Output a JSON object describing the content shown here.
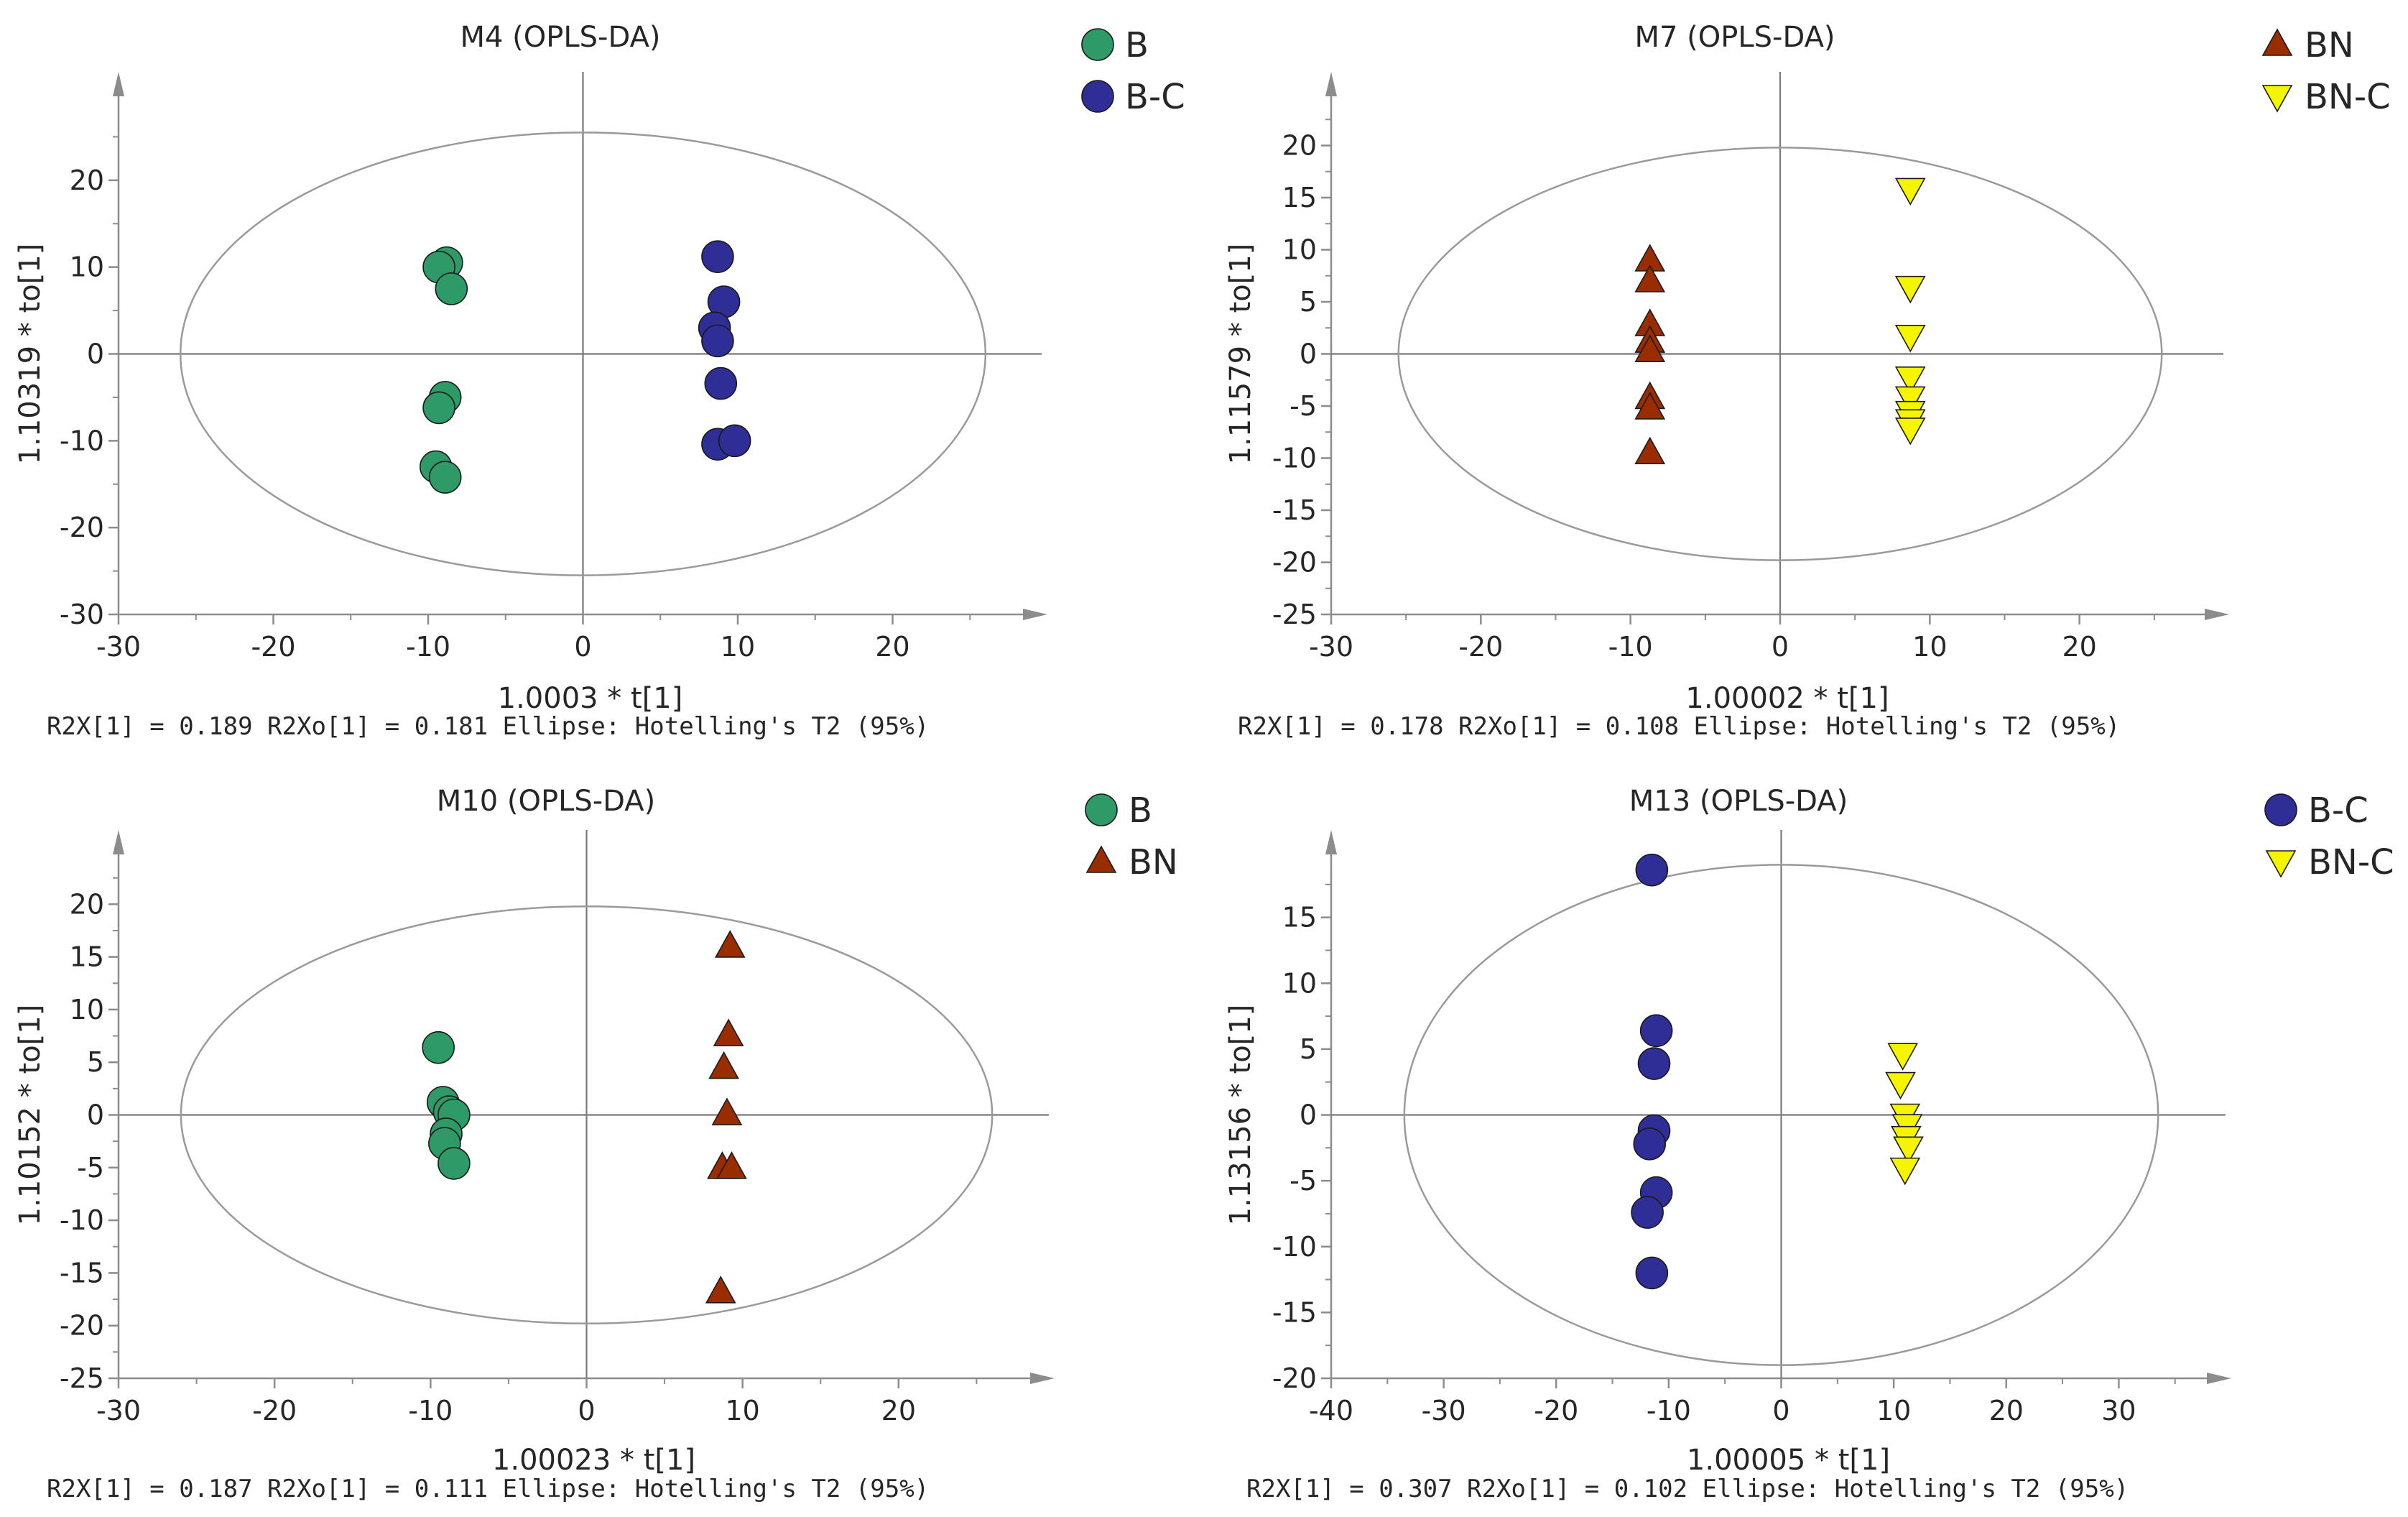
{
  "chart_data": [
    {
      "type": "scatter",
      "title": "M4 (OPLS-DA)",
      "xlabel": "1.0003 * t[1]",
      "ylabel": "1.10319 * to[1]",
      "footer": "R2X[1] = 0.189  R2Xo[1] = 0.181  Ellipse: Hotelling's T2 (95%)",
      "xlim": [
        -30,
        30
      ],
      "ylim": [
        -30,
        30
      ],
      "xticks": [
        -30,
        -20,
        -10,
        0,
        10,
        20
      ],
      "yticks": [
        -30,
        -20,
        -10,
        0,
        10,
        20
      ],
      "ellipse": {
        "rx": 26,
        "ry": 25.5
      },
      "series": [
        {
          "name": "B",
          "marker": "circle",
          "color": "#2e9a68",
          "points": [
            [
              -8.8,
              10.5
            ],
            [
              -9.3,
              10
            ],
            [
              -8.5,
              7.5
            ],
            [
              -8.9,
              -5
            ],
            [
              -9.3,
              -6.2
            ],
            [
              -9.5,
              -13
            ],
            [
              -8.9,
              -14.2
            ]
          ]
        },
        {
          "name": "B-C",
          "marker": "circle",
          "color": "#2e2e96",
          "points": [
            [
              8.7,
              11.2
            ],
            [
              9.1,
              6
            ],
            [
              8.5,
              3
            ],
            [
              8.7,
              1.5
            ],
            [
              8.9,
              -3.4
            ],
            [
              8.7,
              -10.4
            ],
            [
              9.8,
              -10
            ]
          ]
        }
      ]
    },
    {
      "type": "scatter",
      "title": "M7 (OPLS-DA)",
      "xlabel": "1.00002 * t[1]",
      "ylabel": "1.11579 * to[1]",
      "footer": "R2X[1] = 0.178   R2Xo[1] = 0.108  Ellipse: Hotelling's T2 (95%)",
      "xlim": [
        -30,
        30
      ],
      "ylim": [
        -25,
        25
      ],
      "xticks": [
        -30,
        -20,
        -10,
        0,
        10,
        20
      ],
      "yticks": [
        -25,
        -20,
        -15,
        -10,
        -5,
        0,
        5,
        10,
        15,
        20
      ],
      "ellipse": {
        "rx": 25.5,
        "ry": 19.8
      },
      "series": [
        {
          "name": "BN",
          "marker": "triangle-up",
          "color": "#9a2d00",
          "points": [
            [
              -8.7,
              9
            ],
            [
              -8.7,
              7
            ],
            [
              -8.7,
              2.8
            ],
            [
              -8.7,
              1.2
            ],
            [
              -8.7,
              0.3
            ],
            [
              -8.7,
              -4.2
            ],
            [
              -8.7,
              -5.2
            ],
            [
              -8.7,
              -9.5
            ]
          ]
        },
        {
          "name": "BN-C",
          "marker": "triangle-down",
          "color": "#f5f500",
          "points": [
            [
              8.7,
              15.8
            ],
            [
              8.7,
              6.4
            ],
            [
              8.7,
              1.7
            ],
            [
              8.7,
              -2.3
            ],
            [
              8.7,
              -4.2
            ],
            [
              8.7,
              -5.6
            ],
            [
              8.7,
              -6.4
            ],
            [
              8.7,
              -7.2
            ]
          ]
        }
      ]
    },
    {
      "type": "scatter",
      "title": "M10 (OPLS-DA)",
      "xlabel": "1.00023 * t[1]",
      "ylabel": "1.10152 * to[1]",
      "footer": "R2X[1] = 0.187  R2Xo[1] = 0.111  Ellipse: Hotelling's T2 (95%)",
      "xlim": [
        -30,
        30
      ],
      "ylim": [
        -25,
        25
      ],
      "xticks": [
        -30,
        -20,
        -10,
        0,
        10,
        20
      ],
      "yticks": [
        -25,
        -20,
        -15,
        -10,
        -5,
        0,
        5,
        10,
        15,
        20
      ],
      "ellipse": {
        "rx": 26,
        "ry": 19.8
      },
      "series": [
        {
          "name": "B",
          "marker": "circle",
          "color": "#2e9a68",
          "points": [
            [
              -9.5,
              6.4
            ],
            [
              -9.2,
              1.2
            ],
            [
              -8.8,
              0.3
            ],
            [
              -8.5,
              0
            ],
            [
              -9,
              -1.8
            ],
            [
              -9.1,
              -2.7
            ],
            [
              -8.5,
              -4.6
            ]
          ]
        },
        {
          "name": "BN",
          "marker": "triangle-up",
          "color": "#9a2d00",
          "points": [
            [
              9.2,
              16
            ],
            [
              9.1,
              7.6
            ],
            [
              8.8,
              4.5
            ],
            [
              9,
              0.1
            ],
            [
              8.7,
              -5
            ],
            [
              9.3,
              -5
            ],
            [
              8.6,
              -16.8
            ]
          ]
        }
      ]
    },
    {
      "type": "scatter",
      "title": "M13 (OPLS-DA)",
      "xlabel": "1.00005 * t[1]",
      "ylabel": "1.13156 * to[1]",
      "footer": "R2X[1] = 0.307  R2Xo[1] = 0.102  Ellipse: Hotelling's T2 (95%)",
      "xlim": [
        -40,
        40
      ],
      "ylim": [
        -20,
        20
      ],
      "xticks": [
        -40,
        -30,
        -20,
        -10,
        0,
        10,
        20,
        30
      ],
      "yticks": [
        -20,
        -15,
        -10,
        -5,
        0,
        5,
        10,
        15
      ],
      "ellipse": {
        "rx": 33.5,
        "ry": 19
      },
      "series": [
        {
          "name": "B-C",
          "marker": "circle",
          "color": "#2e2e96",
          "points": [
            [
              -11.5,
              18.6
            ],
            [
              -11.1,
              6.4
            ],
            [
              -11.3,
              3.9
            ],
            [
              -11.3,
              -1.2
            ],
            [
              -11.7,
              -2.2
            ],
            [
              -11.1,
              -5.9
            ],
            [
              -11.9,
              -7.4
            ],
            [
              -11.5,
              -12
            ]
          ]
        },
        {
          "name": "BN-C",
          "marker": "triangle-down",
          "color": "#f5f500",
          "points": [
            [
              10.8,
              4.6
            ],
            [
              10.6,
              2.4
            ],
            [
              11,
              0
            ],
            [
              11.2,
              -0.8
            ],
            [
              11.1,
              -1.7
            ],
            [
              11.3,
              -2.5
            ],
            [
              11,
              -4.1
            ]
          ]
        }
      ]
    }
  ]
}
